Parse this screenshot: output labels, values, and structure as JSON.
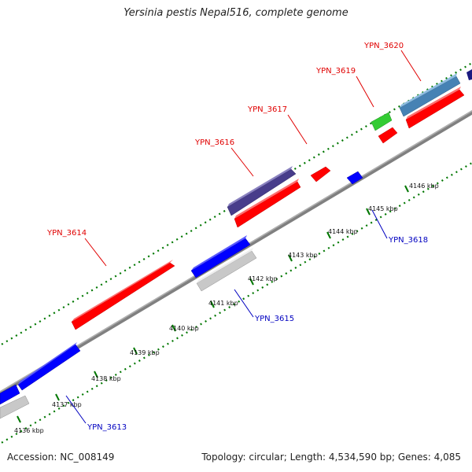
{
  "title": "Yersinia pestis Nepal516, complete genome",
  "footer": {
    "accession": "Accession: NC_008149",
    "summary": "Topology: circular; Length: 4,534,590 bp; Genes: 4,085"
  },
  "ticks": [
    "4136 kbp",
    "4137 kbp",
    "4138 kbp",
    "4139 kbp",
    "4140 kbp",
    "4141 kbp",
    "4142 kbp",
    "4143 kbp",
    "4144 kbp",
    "4145 kbp",
    "4146 kbp"
  ],
  "gene_labels": {
    "fwd": [
      "YPN_3614",
      "YPN_3616",
      "YPN_3617",
      "YPN_3619",
      "YPN_3620"
    ],
    "rev": [
      "YPN_3613",
      "YPN_3615",
      "YPN_3618"
    ]
  },
  "colors": {
    "red_gene": "#ff0000",
    "blue_gene": "#0000ff",
    "navy_gene": "#483d8b",
    "steel_gene": "#4682b4",
    "green_gene": "#33cc33",
    "grey_gene": "#c8c8c8",
    "backbone": "#808080",
    "tick_green": "#007700"
  }
}
